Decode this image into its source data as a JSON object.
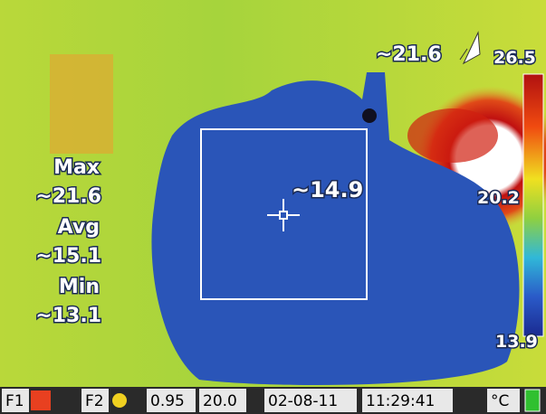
{
  "overlay": {
    "spot_top": "~21.6",
    "spot_center": "~14.9",
    "stats": [
      {
        "label": "Max",
        "value": "~21.6"
      },
      {
        "label": "Avg",
        "value": "~15.1"
      },
      {
        "label": "Min",
        "value": "~13.1"
      }
    ]
  },
  "scale": {
    "max": "26.5",
    "mid": "20.2",
    "min": "13.9"
  },
  "status_bar": {
    "f1": "F1",
    "f2": "F2",
    "emissivity": "0.95",
    "reflected_temp": "20.0",
    "date": "02-08-11",
    "time": "11:29:41",
    "unit": "°C"
  }
}
